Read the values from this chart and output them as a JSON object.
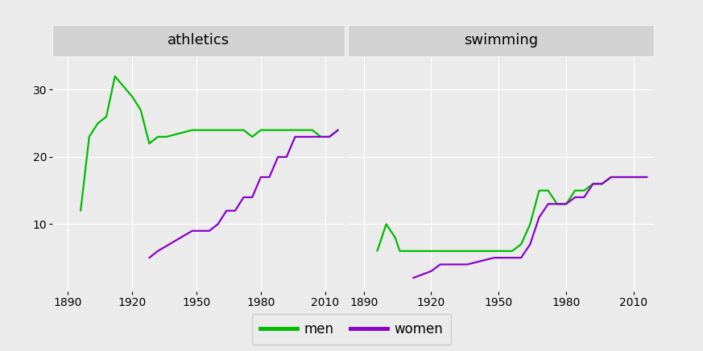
{
  "athletics": {
    "men_years": [
      1896,
      1900,
      1904,
      1908,
      1912,
      1920,
      1924,
      1928,
      1932,
      1936,
      1948,
      1952,
      1956,
      1960,
      1964,
      1968,
      1972,
      1976,
      1980,
      1984,
      1988,
      1992,
      1996,
      2000,
      2004,
      2008,
      2012,
      2016
    ],
    "men_values": [
      12,
      23,
      25,
      26,
      32,
      29,
      27,
      22,
      23,
      23,
      24,
      24,
      24,
      24,
      24,
      24,
      24,
      23,
      24,
      24,
      24,
      24,
      24,
      24,
      24,
      23,
      23,
      24
    ],
    "women_years": [
      1928,
      1932,
      1948,
      1952,
      1956,
      1960,
      1964,
      1968,
      1972,
      1976,
      1980,
      1984,
      1988,
      1992,
      1996,
      2000,
      2004,
      2008,
      2012,
      2016
    ],
    "women_values": [
      5,
      6,
      9,
      9,
      9,
      10,
      12,
      12,
      14,
      14,
      17,
      17,
      20,
      20,
      23,
      23,
      23,
      23,
      23,
      24
    ]
  },
  "swimming": {
    "men_years": [
      1896,
      1900,
      1904,
      1906,
      1908,
      1912,
      1920,
      1924,
      1928,
      1932,
      1936,
      1948,
      1952,
      1956,
      1960,
      1964,
      1968,
      1972,
      1976,
      1980,
      1984,
      1988,
      1992,
      1996,
      2000,
      2004,
      2008,
      2012,
      2016
    ],
    "men_values": [
      6,
      10,
      8,
      6,
      6,
      6,
      6,
      6,
      6,
      6,
      6,
      6,
      6,
      6,
      7,
      10,
      15,
      15,
      13,
      13,
      15,
      15,
      16,
      16,
      17,
      17,
      17,
      17,
      17
    ],
    "women_years": [
      1912,
      1920,
      1924,
      1928,
      1932,
      1936,
      1948,
      1952,
      1956,
      1960,
      1964,
      1968,
      1972,
      1976,
      1980,
      1984,
      1988,
      1992,
      1996,
      2000,
      2004,
      2008,
      2012,
      2016
    ],
    "women_values": [
      2,
      3,
      4,
      4,
      4,
      4,
      5,
      5,
      5,
      5,
      7,
      11,
      13,
      13,
      13,
      14,
      14,
      16,
      16,
      17,
      17,
      17,
      17,
      17
    ]
  },
  "men_color": "#00BB00",
  "women_color": "#8800CC",
  "panel_bg": "#EBEBEB",
  "title_bg": "#D3D3D3",
  "panel_titles": [
    "athletics",
    "swimming"
  ],
  "ylim": [
    0,
    35
  ],
  "yticks": [
    10,
    20,
    30
  ],
  "xlim": [
    1883,
    2019
  ],
  "xticks": [
    1890,
    1920,
    1950,
    1980,
    2010
  ],
  "line_width": 1.6,
  "title_fontsize": 13,
  "tick_fontsize": 10,
  "legend_fontsize": 12
}
